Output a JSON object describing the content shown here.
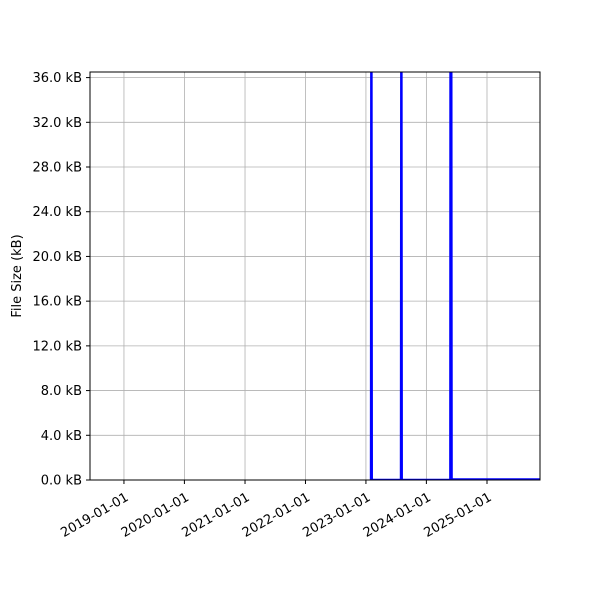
{
  "chart_data": {
    "type": "line",
    "title": "",
    "xlabel": "",
    "ylabel": "File Size (kB)",
    "x_axis_type": "date",
    "xlim": [
      "2018-06-10",
      "2025-11-17"
    ],
    "ylim": [
      0,
      36.5
    ],
    "x_ticks": [
      "2019-01-01",
      "2020-01-01",
      "2021-01-01",
      "2022-01-01",
      "2023-01-01",
      "2024-01-01",
      "2025-01-01"
    ],
    "y_ticks": [
      0,
      4,
      8,
      12,
      16,
      20,
      24,
      28,
      32,
      36
    ],
    "y_tick_labels": [
      "0.0 kB",
      "4.0 kB",
      "8.0 kB",
      "12.0 kB",
      "16.0 kB",
      "20.0 kB",
      "24.0 kB",
      "28.0 kB",
      "32.0 kB",
      "36.0 kB"
    ],
    "grid": true,
    "legend": "none",
    "series": [
      {
        "color": "#0000ff",
        "points": [
          [
            "2023-02-01",
            0
          ],
          [
            "2023-02-03",
            40
          ],
          [
            "2023-02-05",
            0
          ],
          [
            "2023-08-01",
            0
          ],
          [
            "2023-08-03",
            40
          ],
          [
            "2023-08-05",
            0
          ],
          [
            "2024-05-25",
            0
          ],
          [
            "2024-05-26",
            40
          ],
          [
            "2024-05-28",
            0
          ],
          [
            "2024-05-30",
            40
          ],
          [
            "2024-06-01",
            0
          ],
          [
            "2024-06-02",
            0.05
          ],
          [
            "2025-06-01",
            0.05
          ],
          [
            "2025-11-17",
            0.05
          ]
        ]
      }
    ]
  }
}
